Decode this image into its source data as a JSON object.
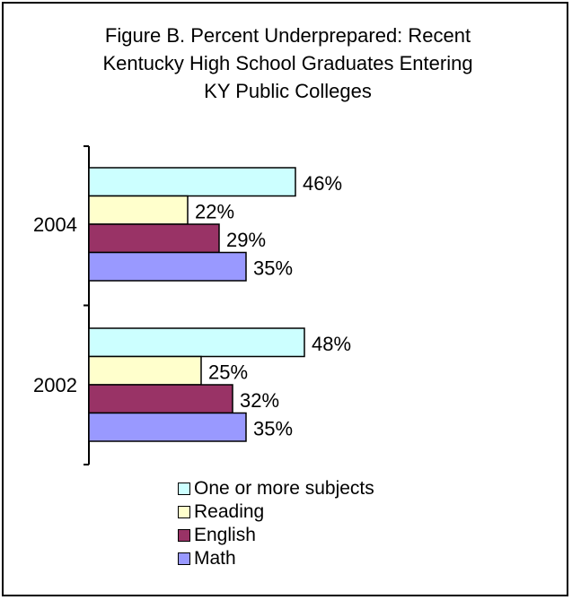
{
  "chart_data": {
    "type": "bar",
    "orientation": "horizontal",
    "title_lines": [
      "Figure B.  Percent Underprepared: Recent",
      "Kentucky High School Graduates Entering",
      "KY Public Colleges"
    ],
    "categories": [
      "2004",
      "2002"
    ],
    "series": [
      {
        "name": "One or more subjects",
        "color": "#ccffff",
        "values": [
          46,
          48
        ],
        "labels": [
          "46%",
          "48%"
        ]
      },
      {
        "name": "Reading",
        "color": "#ffffcc",
        "values": [
          22,
          25
        ],
        "labels": [
          "22%",
          "25%"
        ]
      },
      {
        "name": "English",
        "color": "#993366",
        "values": [
          29,
          32
        ],
        "labels": [
          "29%",
          "32%"
        ]
      },
      {
        "name": "Math",
        "color": "#9999ff",
        "values": [
          35,
          35
        ],
        "labels": [
          "35%",
          "35%"
        ]
      }
    ],
    "xlim": [
      0,
      100
    ],
    "grid": false,
    "legend_position": "bottom"
  }
}
